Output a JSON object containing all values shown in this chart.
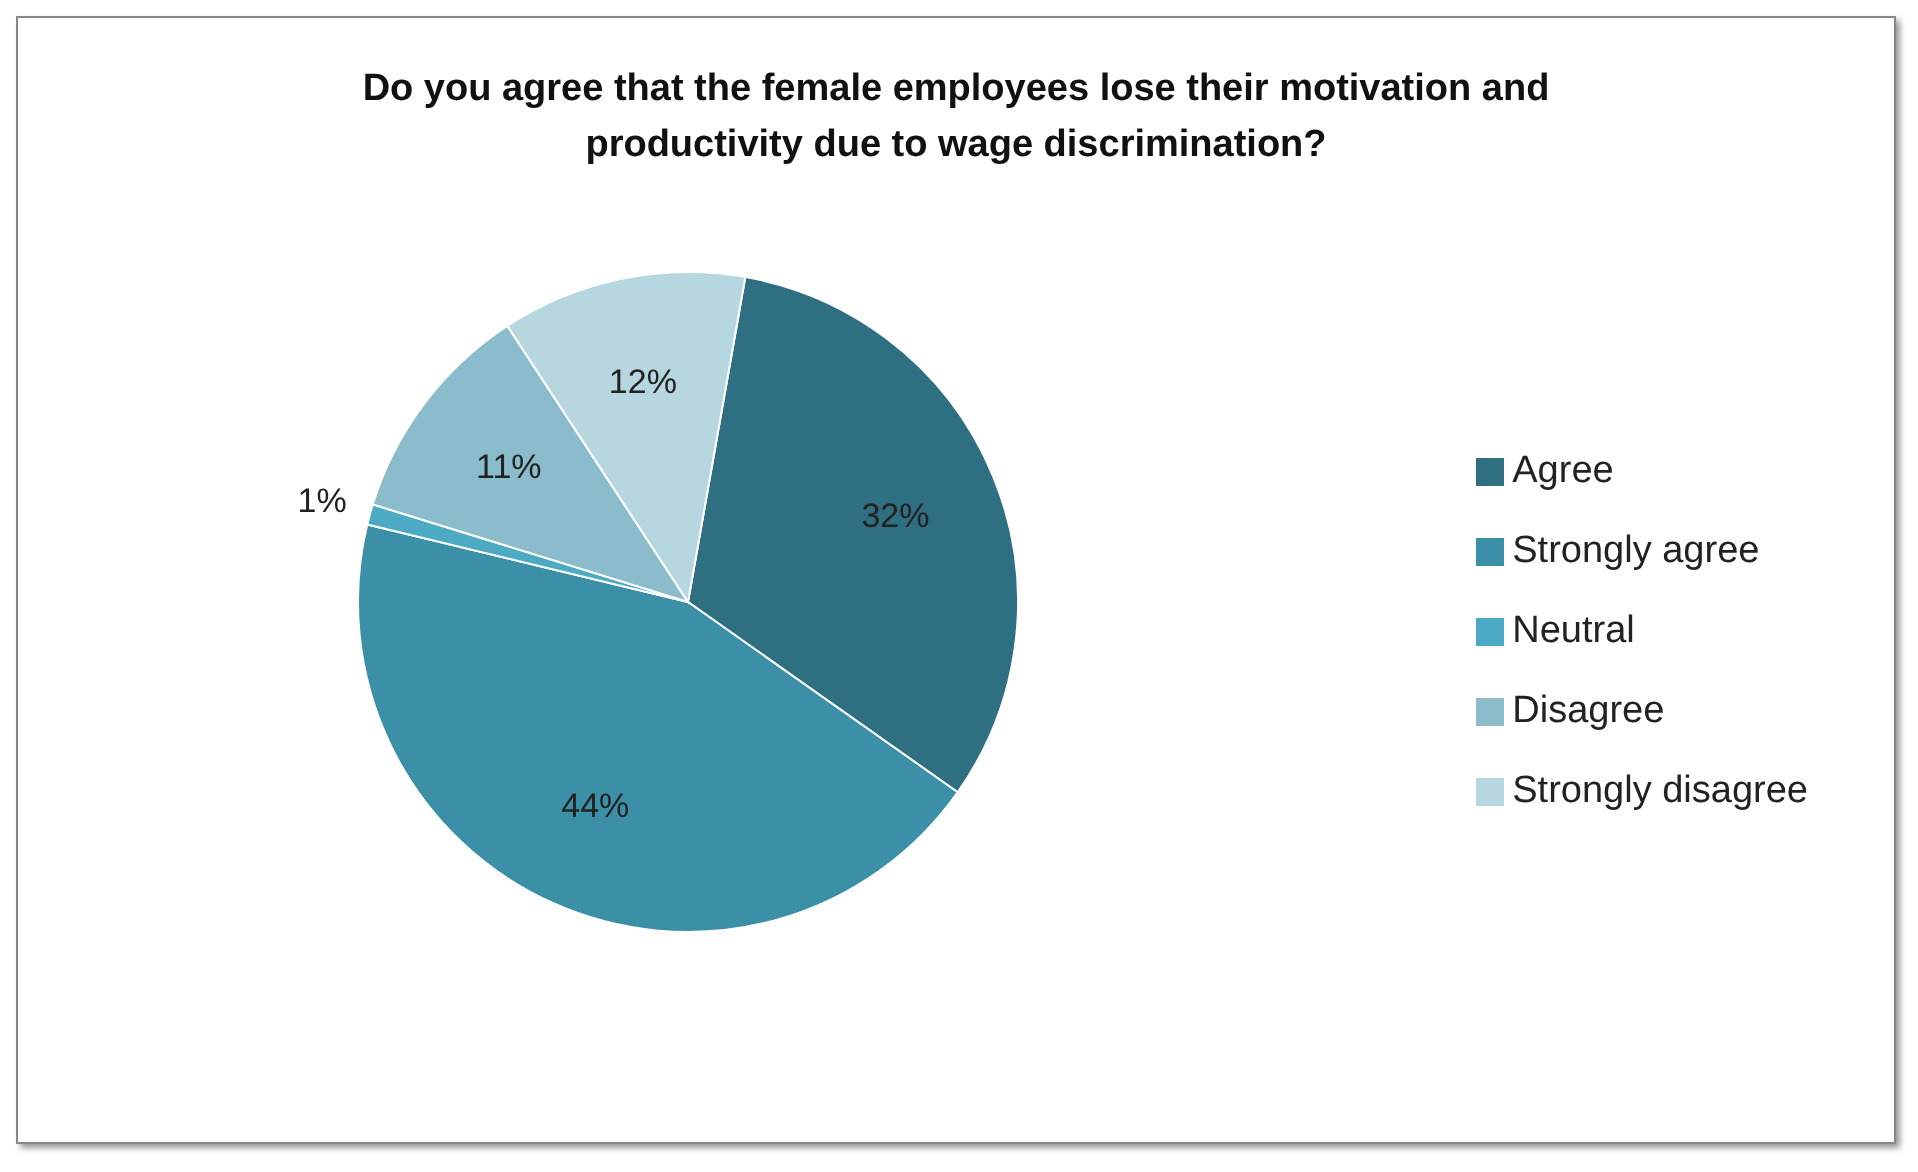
{
  "chart_data": {
    "type": "pie",
    "title": "Do you agree that the female employees lose their motivation and productivity due to wage discrimination?",
    "categories": [
      "Agree",
      "Strongly agree",
      "Neutral",
      "Disagree",
      "Strongly disagree"
    ],
    "values": [
      32,
      44,
      1,
      11,
      12
    ],
    "value_labels": [
      "32%",
      "44%",
      "1%",
      "11%",
      "12%"
    ],
    "colors": [
      "#2e6f82",
      "#3b8fa7",
      "#4daac4",
      "#8bbccb",
      "#b7d7e0"
    ],
    "legend": "right"
  }
}
